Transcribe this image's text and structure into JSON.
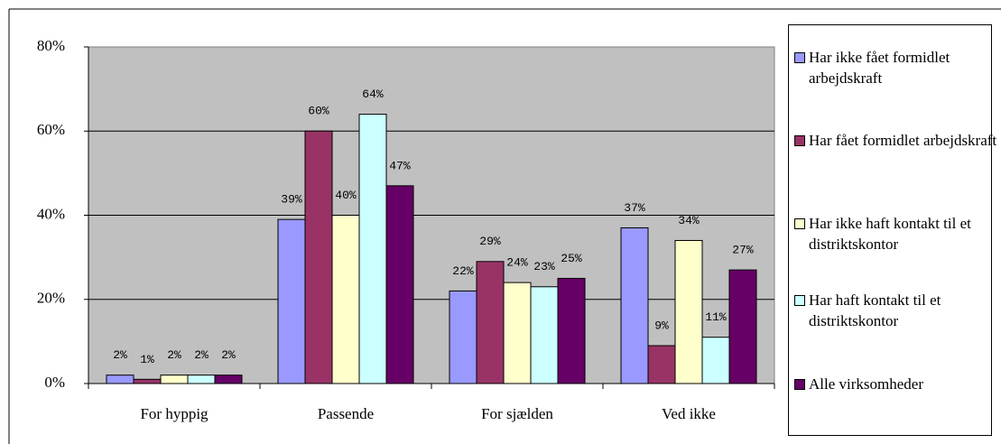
{
  "chart_data": {
    "type": "bar",
    "categories": [
      "For hyppig",
      "Passende",
      "For sjælden",
      "Ved ikke"
    ],
    "series": [
      {
        "name": "Har ikke fået formidlet arbejdskraft",
        "color": "#9999ff",
        "values": [
          2,
          39,
          22,
          37
        ],
        "value_labels": [
          "2%",
          "39%",
          "22%",
          "37%"
        ]
      },
      {
        "name": "Har fået formidlet arbejdskraft",
        "color": "#993366",
        "values": [
          1,
          60,
          29,
          9
        ],
        "value_labels": [
          "1%",
          "60%",
          "29%",
          "9%"
        ]
      },
      {
        "name": "Har ikke haft kontakt til et distriktskontor",
        "color": "#ffffcc",
        "values": [
          2,
          40,
          24,
          34
        ],
        "value_labels": [
          "2%",
          "40%",
          "24%",
          "34%"
        ]
      },
      {
        "name": "Har haft kontakt til et distriktskontor",
        "color": "#ccffff",
        "values": [
          2,
          64,
          23,
          11
        ],
        "value_labels": [
          "2%",
          "64%",
          "23%",
          "11%"
        ]
      },
      {
        "name": "Alle virksomheder",
        "color": "#660066",
        "values": [
          2,
          47,
          25,
          27
        ],
        "value_labels": [
          "2%",
          "47%",
          "25%",
          "27%"
        ]
      }
    ],
    "ylim": [
      0,
      80
    ],
    "yticks": [
      {
        "value": 0,
        "label": "0%"
      },
      {
        "value": 20,
        "label": "20%"
      },
      {
        "value": 40,
        "label": "40%"
      },
      {
        "value": 60,
        "label": "60%"
      },
      {
        "value": 80,
        "label": "80%"
      }
    ],
    "grid": true,
    "legend": "right"
  }
}
